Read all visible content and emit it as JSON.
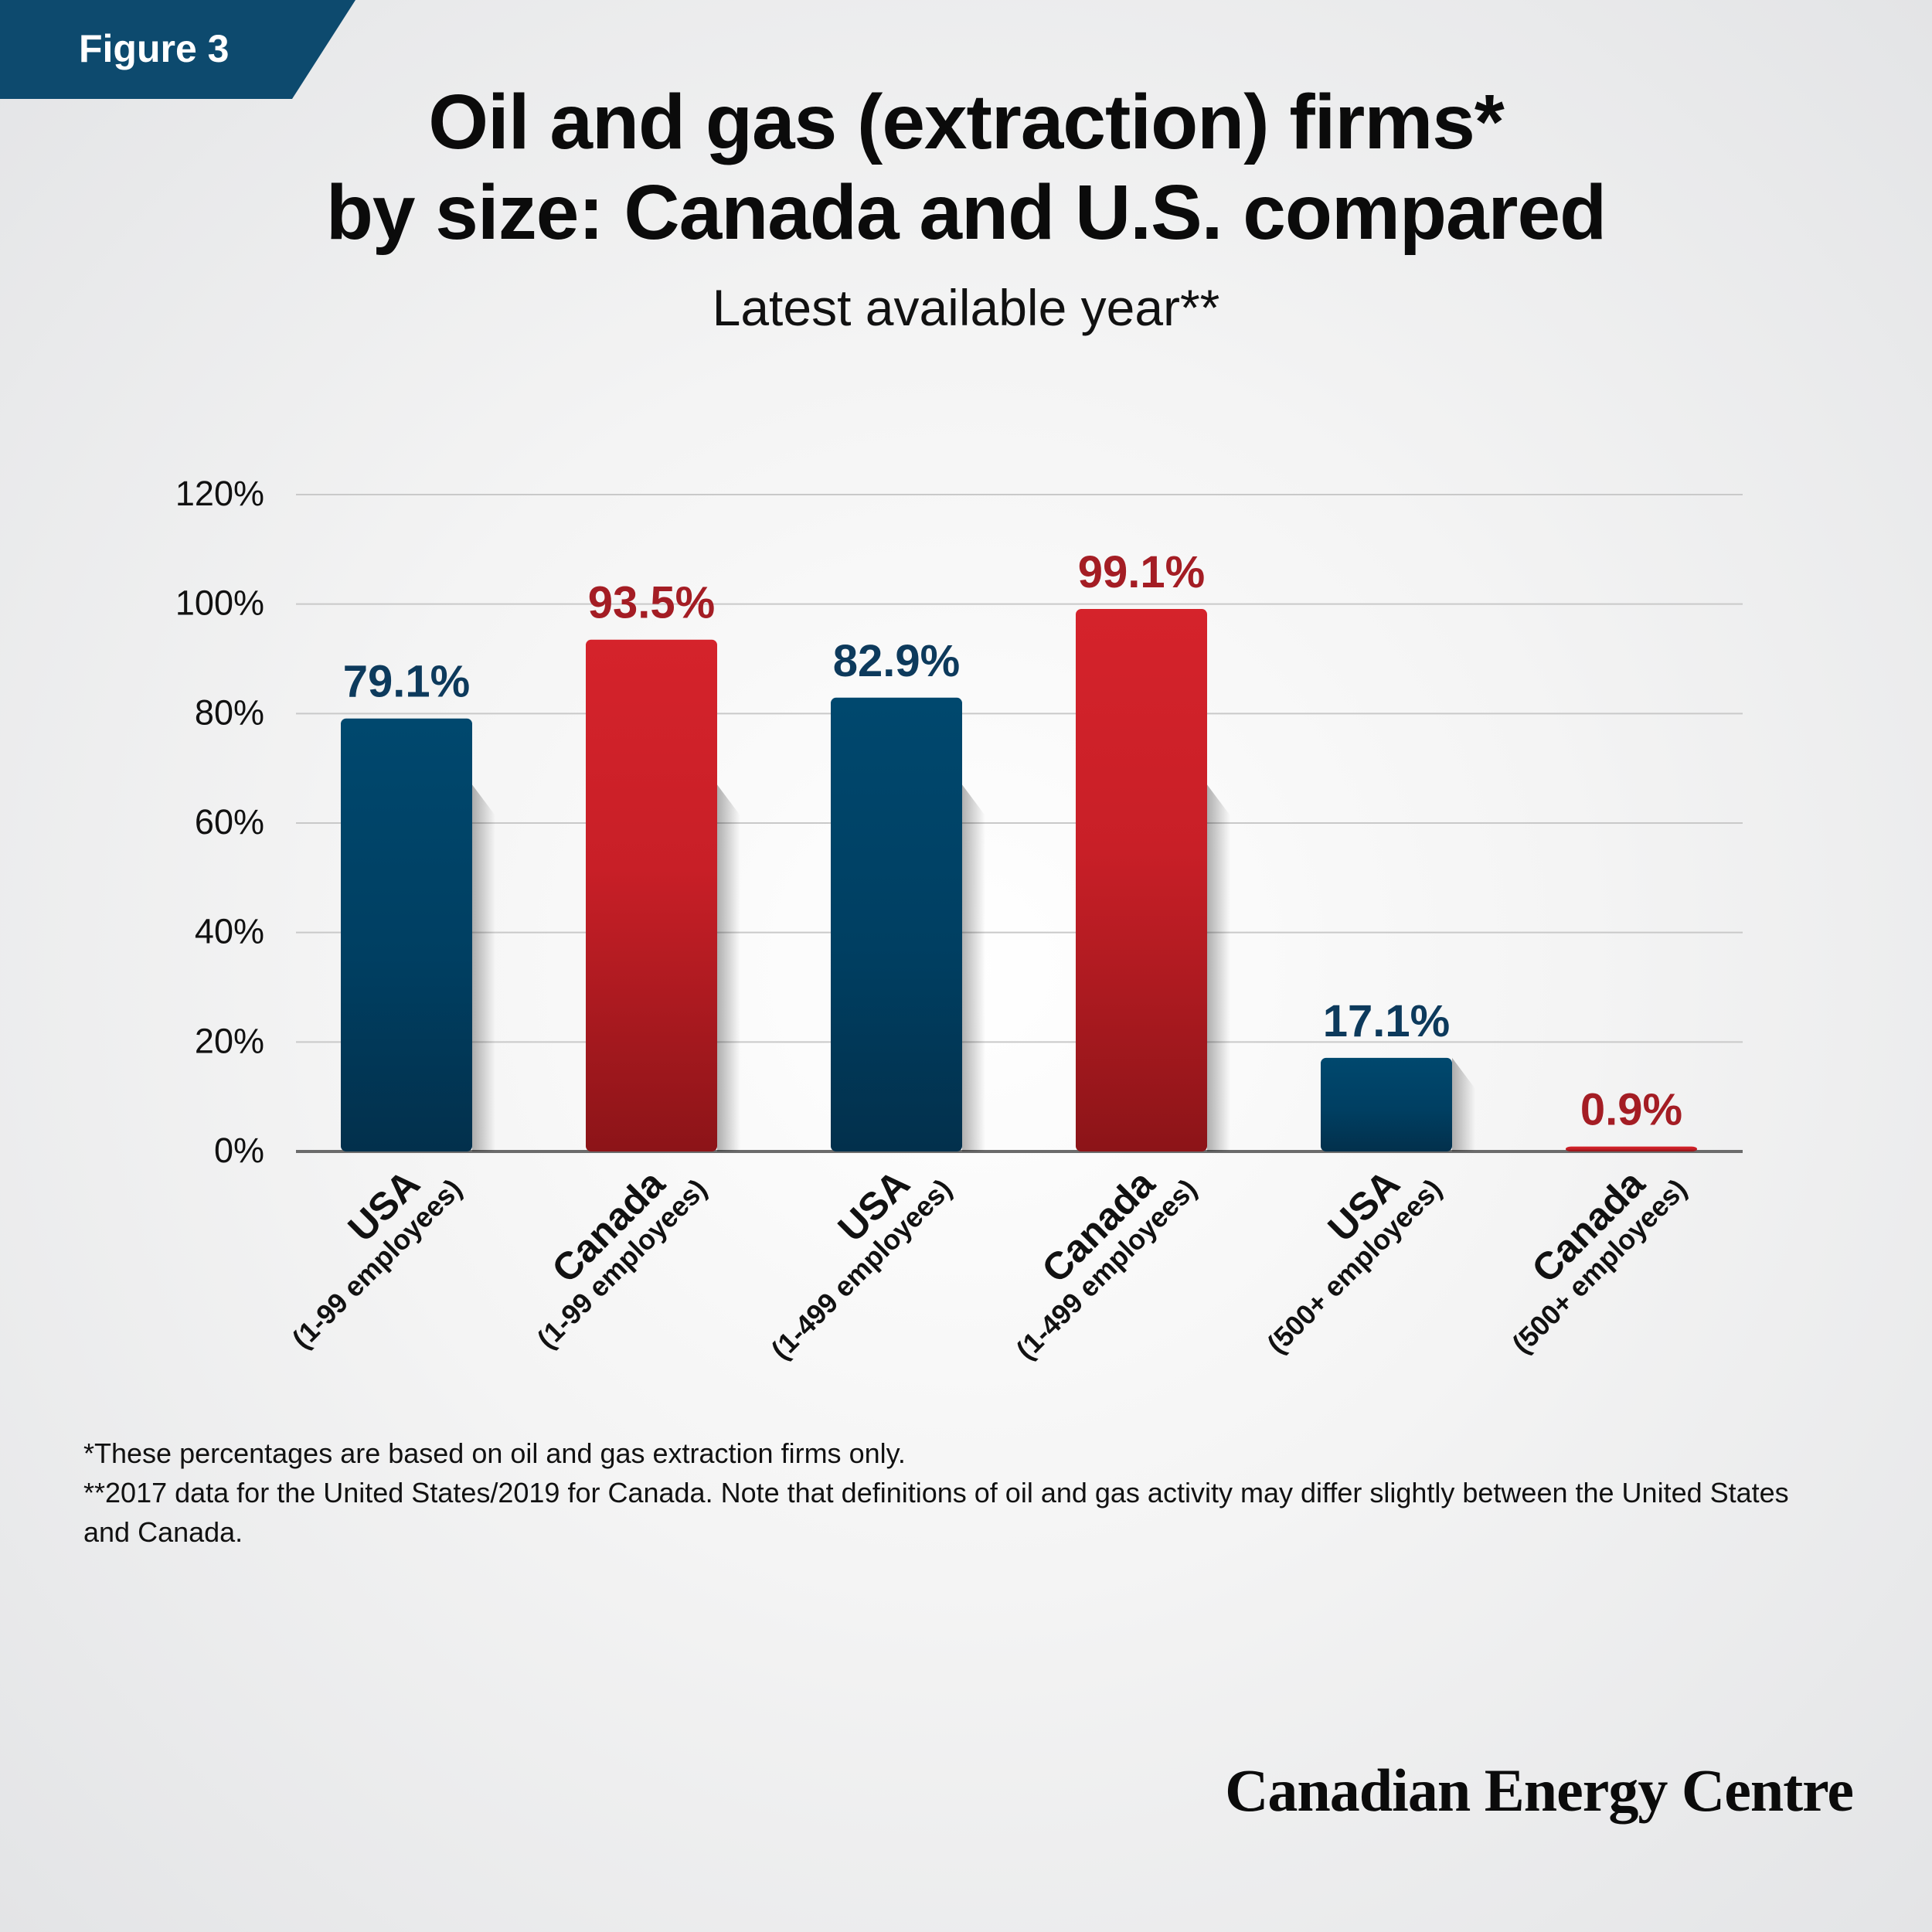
{
  "figure_label": "Figure 3",
  "title_line1": "Oil and gas (extraction) firms*",
  "title_line2": "by size: Canada and U.S. compared",
  "subtitle": "Latest available year**",
  "footnote1": "*These percentages are based on oil and gas extraction firms only.",
  "footnote2": "**2017 data for the United States/2019 for Canada. Note that definitions of oil and gas activity may differ slightly between the United States and Canada.",
  "brand": "Canadian Energy Centre",
  "colors": {
    "usa": "#00466b",
    "usa_dark": "#032f49",
    "canada": "#d2232a",
    "canada_dark": "#8f1418",
    "usa_label": "#0d3a5c",
    "canada_label": "#a41d24",
    "tab": "#0d4a6e"
  },
  "chart_data": {
    "type": "bar",
    "title": "Oil and gas (extraction) firms* by size: Canada and U.S. compared",
    "subtitle": "Latest available year**",
    "ylim": [
      0,
      120
    ],
    "yticks": [
      0,
      20,
      40,
      60,
      80,
      100,
      120
    ],
    "ytick_labels": [
      "0%",
      "20%",
      "40%",
      "60%",
      "80%",
      "100%",
      "120%"
    ],
    "grid": true,
    "categories": [
      {
        "main": "USA",
        "sub": "(1-99 employees)",
        "country": "usa"
      },
      {
        "main": "Canada",
        "sub": "(1-99 employees)",
        "country": "canada"
      },
      {
        "main": "USA",
        "sub": "(1-499 employees)",
        "country": "usa"
      },
      {
        "main": "Canada",
        "sub": "(1-499 employees)",
        "country": "canada"
      },
      {
        "main": "USA",
        "sub": "(500+ employees)",
        "country": "usa"
      },
      {
        "main": "Canada",
        "sub": "(500+ employees)",
        "country": "canada"
      }
    ],
    "values": [
      79.1,
      93.5,
      82.9,
      99.1,
      17.1,
      0.9
    ],
    "value_labels": [
      "79.1%",
      "93.5%",
      "82.9%",
      "99.1%",
      "17.1%",
      "0.9%"
    ]
  }
}
